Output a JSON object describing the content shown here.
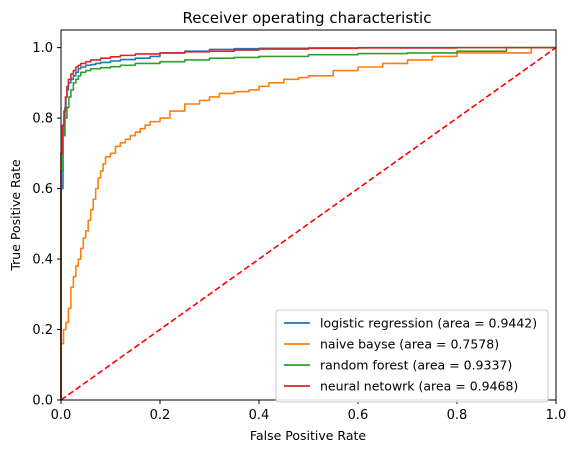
{
  "chart_data": {
    "type": "line",
    "title": "Receiver operating characteristic",
    "xlabel": "False Positive Rate",
    "ylabel": "True Positive Rate",
    "xlim": [
      0.0,
      1.0
    ],
    "ylim": [
      0.0,
      1.05
    ],
    "x_ticks": [
      "0.0",
      "0.2",
      "0.4",
      "0.6",
      "0.8",
      "1.0"
    ],
    "y_ticks": [
      "0.0",
      "0.2",
      "0.4",
      "0.6",
      "0.8",
      "1.0"
    ],
    "grid": false,
    "legend_position": "lower-right",
    "series": [
      {
        "name": "logistic regression (area = 0.9442)",
        "color": "#1f77b4",
        "style": "step",
        "x": [
          0.0,
          0.0,
          0.004,
          0.006,
          0.008,
          0.01,
          0.012,
          0.015,
          0.02,
          0.025,
          0.03,
          0.035,
          0.04,
          0.05,
          0.06,
          0.07,
          0.08,
          0.1,
          0.12,
          0.15,
          0.18,
          0.2,
          0.25,
          0.3,
          0.35,
          0.4,
          0.5,
          0.6,
          0.8,
          1.0
        ],
        "y": [
          0.0,
          0.48,
          0.6,
          0.75,
          0.8,
          0.83,
          0.86,
          0.88,
          0.9,
          0.91,
          0.92,
          0.93,
          0.94,
          0.945,
          0.95,
          0.952,
          0.955,
          0.958,
          0.962,
          0.966,
          0.97,
          0.975,
          0.985,
          0.99,
          0.995,
          0.997,
          0.998,
          0.999,
          1.0,
          1.0
        ]
      },
      {
        "name": "naive bayse (area = 0.7578)",
        "color": "#ff7f0e",
        "style": "step",
        "x": [
          0.0,
          0.0,
          0.005,
          0.01,
          0.015,
          0.02,
          0.025,
          0.03,
          0.035,
          0.04,
          0.045,
          0.05,
          0.055,
          0.06,
          0.065,
          0.07,
          0.075,
          0.08,
          0.085,
          0.09,
          0.1,
          0.11,
          0.12,
          0.13,
          0.14,
          0.15,
          0.16,
          0.17,
          0.18,
          0.2,
          0.22,
          0.25,
          0.28,
          0.3,
          0.32,
          0.35,
          0.38,
          0.4,
          0.42,
          0.45,
          0.48,
          0.5,
          0.55,
          0.6,
          0.65,
          0.7,
          0.75,
          0.8,
          0.82,
          0.85,
          0.9,
          0.95,
          1.0
        ],
        "y": [
          0.0,
          0.06,
          0.16,
          0.2,
          0.22,
          0.26,
          0.32,
          0.35,
          0.38,
          0.4,
          0.43,
          0.46,
          0.48,
          0.51,
          0.54,
          0.57,
          0.6,
          0.63,
          0.65,
          0.67,
          0.69,
          0.7,
          0.72,
          0.73,
          0.74,
          0.75,
          0.76,
          0.77,
          0.78,
          0.79,
          0.8,
          0.82,
          0.84,
          0.85,
          0.86,
          0.87,
          0.875,
          0.88,
          0.89,
          0.9,
          0.91,
          0.915,
          0.92,
          0.935,
          0.945,
          0.955,
          0.965,
          0.975,
          0.985,
          0.985,
          0.985,
          0.985,
          1.0
        ]
      },
      {
        "name": "random forest (area = 0.9337)",
        "color": "#2ca02c",
        "style": "step",
        "x": [
          0.0,
          0.0,
          0.004,
          0.008,
          0.012,
          0.016,
          0.02,
          0.025,
          0.03,
          0.035,
          0.04,
          0.05,
          0.06,
          0.08,
          0.1,
          0.12,
          0.15,
          0.2,
          0.25,
          0.3,
          0.35,
          0.4,
          0.5,
          0.6,
          0.7,
          0.8,
          0.9,
          1.0
        ],
        "y": [
          0.0,
          0.45,
          0.65,
          0.75,
          0.8,
          0.83,
          0.86,
          0.88,
          0.9,
          0.91,
          0.92,
          0.93,
          0.935,
          0.94,
          0.943,
          0.946,
          0.95,
          0.955,
          0.96,
          0.965,
          0.97,
          0.972,
          0.975,
          0.98,
          0.983,
          0.985,
          0.99,
          1.0
        ]
      },
      {
        "name": "neural netowrk (area = 0.9468)",
        "color": "#d62728",
        "style": "step",
        "x": [
          0.0,
          0.0,
          0.003,
          0.006,
          0.009,
          0.012,
          0.015,
          0.02,
          0.025,
          0.03,
          0.035,
          0.04,
          0.05,
          0.06,
          0.08,
          0.1,
          0.12,
          0.15,
          0.2,
          0.25,
          0.3,
          0.35,
          0.4,
          0.5,
          0.6,
          0.8,
          1.0
        ],
        "y": [
          0.0,
          0.5,
          0.7,
          0.78,
          0.82,
          0.86,
          0.89,
          0.91,
          0.925,
          0.935,
          0.945,
          0.95,
          0.955,
          0.96,
          0.965,
          0.97,
          0.974,
          0.978,
          0.982,
          0.985,
          0.988,
          0.99,
          0.993,
          0.996,
          0.998,
          0.999,
          1.0
        ]
      },
      {
        "name": "",
        "color": "#ff0000",
        "style": "dashed",
        "x": [
          0.0,
          1.0
        ],
        "y": [
          0.0,
          1.0
        ]
      }
    ]
  }
}
